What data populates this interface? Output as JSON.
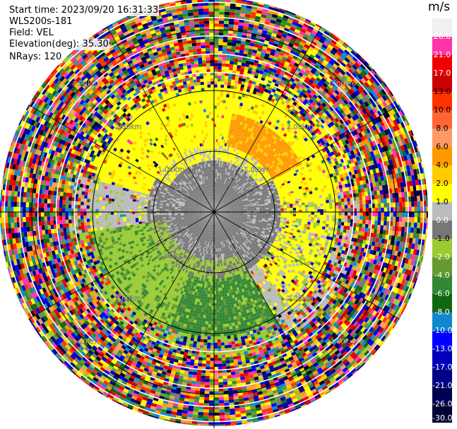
{
  "header": {
    "start_time": "Start time: 2023/09/20 16:31:33",
    "instrument": "WLS200s-181",
    "field": "Field: VEL",
    "elevation": "Elevation(deg): 35.30",
    "nrays": "NRays: 120"
  },
  "chart_data": {
    "type": "ppi",
    "title": "",
    "field": "VEL",
    "elevation_deg": 35.3,
    "nrays": 120,
    "range_rings_km": [
      1.0,
      2.0,
      3.0
    ],
    "range_labels": [
      "1.00km",
      "2.00km",
      "3.00km"
    ],
    "colorbar": {
      "unit": "m/s",
      "ticks": [
        "26.0",
        "21.0",
        "17.0",
        "13.0",
        "10.0",
        "8.0",
        "6.0",
        "4.0",
        "2.0",
        "1.0",
        "0.0",
        "-1.0",
        "-2.0",
        "-4.0",
        "-6.0",
        "-8.0",
        "-10.0",
        "-13.0",
        "-17.0",
        "-21.0",
        "-26.0",
        "-30.0"
      ],
      "colors": [
        "#f0f0f0",
        "#ff33aa",
        "#ee0000",
        "#cc0000",
        "#ff3300",
        "#ff6633",
        "#ff9966",
        "#ff9900",
        "#ffcc00",
        "#ffff00",
        "#bbbbbb",
        "#777777",
        "#99cc33",
        "#669933",
        "#338833",
        "#116611",
        "#1188cc",
        "#0000ff",
        "#0000bb",
        "#000088",
        "#000055",
        "#000033"
      ]
    },
    "regions": [
      {
        "name": "inner gray core",
        "range_km": [
          0,
          1.1
        ],
        "value_ms": 0.0
      },
      {
        "name": "north yellow band",
        "range_km": [
          1.0,
          2.0
        ],
        "azimuth_deg": [
          280,
          80
        ],
        "value_ms": 2.0
      },
      {
        "name": "north-east orange patch",
        "range_km": [
          1.1,
          1.6
        ],
        "azimuth_deg": [
          0,
          60
        ],
        "value_ms": 6.0
      },
      {
        "name": "south green band",
        "range_km": [
          0.9,
          2.0
        ],
        "azimuth_deg": [
          150,
          260
        ],
        "value_ms": -4.0
      },
      {
        "name": "noise outer ring",
        "range_km": [
          2.0,
          3.4
        ],
        "value_ms": "random"
      }
    ]
  }
}
